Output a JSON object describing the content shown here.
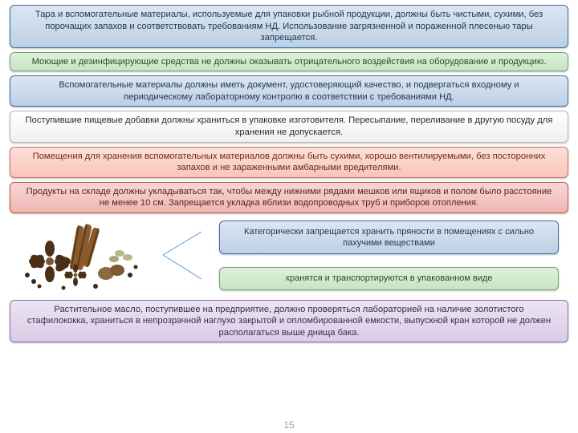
{
  "blocks": [
    {
      "text": "Тара и вспомогательные материалы, используемые для упаковки рыбной продукции, должны быть чистыми, сухими, без порочащих запахов и соответствовать требованиям НД. Использование загрязненной и пораженной плесенью тары запрещается.",
      "bg_top": "#dbe6f1",
      "bg_bot": "#bcd0e5",
      "border": "#3f6fa3",
      "color": "#1f3552"
    },
    {
      "text": "Моющие и дезинфицирующие средства не должны оказывать отрицательного воздействия на оборудование и продукцию.",
      "bg_top": "#dff0dd",
      "bg_bot": "#c6e4c2",
      "border": "#6da867",
      "color": "#2a4a26"
    },
    {
      "text": "Вспомогательные материалы должны иметь документ, удостоверяющий качество, и подвергаться входному и периодическому лабораторному контролю в соответствии с требованиями НД.",
      "bg_top": "#dbe6f1",
      "bg_bot": "#bcd0e5",
      "border": "#3f6fa3",
      "color": "#1f3552"
    },
    {
      "text": "Поступившие пищевые добавки должны храниться в упаковке изготовителя. Пересыпание, переливание в другую посуду для хранения не допускается.",
      "bg_top": "#ffffff",
      "bg_bot": "#f0f0f0",
      "border": "#b7b7b7",
      "color": "#2a2a2a"
    },
    {
      "text": "Помещения для хранения вспомогательных материалов должны быть сухими, хорошо вентилируемыми, без посторонних запахов и не зараженными амбарными вредителями.",
      "bg_top": "#fde0d8",
      "bg_bot": "#f7c6b8",
      "border": "#c97460",
      "color": "#6a2d1e"
    },
    {
      "text": "Продукты на складе должны укладываться так, чтобы между нижними рядами мешков или ящиков и полом было расстояние не менее 10 см. Запрещается укладка вблизи водопроводных труб и приборов отопления.",
      "bg_top": "#f6d8d6",
      "bg_bot": "#edb6b2",
      "border": "#c05550",
      "color": "#5c1e1a"
    }
  ],
  "side": [
    {
      "text": "Категорически запрещается хранить пряности в помещениях с сильно пахучими веществами",
      "bg_top": "#dbe6f1",
      "bg_bot": "#bcd0e5",
      "border": "#3f6fa3",
      "color": "#1f3552"
    },
    {
      "text": "хранятся и транспортируются в упакованном виде",
      "bg_top": "#dff0dd",
      "bg_bot": "#c6e4c2",
      "border": "#6da867",
      "color": "#2a4a26"
    }
  ],
  "bottom": {
    "text": "Растительное масло, поступившее на предприятие, должно проверяться лабораторией на наличие золотистого стафилококка, храниться в непрозрачной наглухо закрытой и опломбированной емкости, выпускной кран которой не должен располагаться выше днища бака.",
    "bg_top": "#ece4f2",
    "bg_bot": "#d9cce6",
    "border": "#8c6fb0",
    "color": "#3a2a52"
  },
  "page_number": "15",
  "page_color": "#8aa6bd",
  "bracket_color": "#5b9bd5",
  "spices": {
    "cinnamon": "#8a5a2b",
    "cinnamon_dark": "#5c3a17",
    "anise": "#4b2f16",
    "anise_light": "#7a5733",
    "cardamom": "#b6b88a",
    "nutmeg": "#8a6a3f",
    "pepper": "#2a2a2a",
    "clove": "#3b2a18"
  }
}
